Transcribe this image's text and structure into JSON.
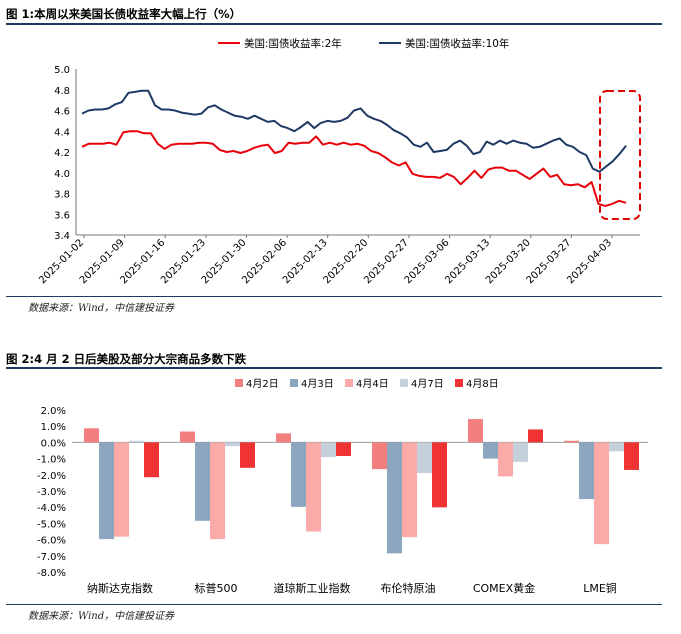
{
  "figures": [
    {
      "title": "图 1:本周以来美国长债收益率大幅上行（%）",
      "source": "数据来源：Wind，中信建投证券"
    },
    {
      "title": "图 2:4 月 2 日后美股及部分大宗商品多数下跌",
      "source": "数据来源：Wind，中信建投证券"
    }
  ],
  "colors": {
    "navy": "#1f3864",
    "red": "#e8000b",
    "box": "#e00000"
  },
  "chart_data": [
    {
      "type": "line",
      "title": "图 1:本周以来美国长债收益率大幅上行（%）",
      "xlabel": "",
      "ylabel": "",
      "ylim": [
        3.4,
        5.0
      ],
      "yticks": [
        "5.0",
        "4.8",
        "4.6",
        "4.4",
        "4.2",
        "4.0",
        "3.8",
        "3.6",
        "3.4"
      ],
      "xticks": [
        "2025-01-02",
        "2025-01-09",
        "2025-01-16",
        "2025-01-23",
        "2025-01-30",
        "2025-02-06",
        "2025-02-13",
        "2025-02-20",
        "2025-02-27",
        "2025-03-06",
        "2025-03-13",
        "2025-03-20",
        "2025-03-27",
        "2025-04-03"
      ],
      "legend_position": "top",
      "annotation": "dashed red box around final days",
      "series": [
        {
          "name": "美国:国债收益率:2年",
          "color": "#e8000b",
          "values": [
            4.25,
            4.28,
            4.28,
            4.28,
            4.29,
            4.27,
            4.39,
            4.4,
            4.4,
            4.38,
            4.38,
            4.28,
            4.23,
            4.27,
            4.28,
            4.28,
            4.28,
            4.29,
            4.29,
            4.28,
            4.22,
            4.2,
            4.21,
            4.19,
            4.21,
            4.24,
            4.26,
            4.27,
            4.19,
            4.21,
            4.29,
            4.28,
            4.29,
            4.29,
            4.35,
            4.27,
            4.29,
            4.27,
            4.29,
            4.27,
            4.28,
            4.26,
            4.21,
            4.19,
            4.15,
            4.1,
            4.07,
            4.1,
            3.99,
            3.97,
            3.96,
            3.96,
            3.95,
            3.99,
            3.96,
            3.89,
            3.95,
            4.02,
            3.95,
            4.03,
            4.05,
            4.05,
            4.02,
            4.02,
            3.98,
            3.94,
            3.99,
            4.04,
            3.96,
            3.98,
            3.89,
            3.88,
            3.89,
            3.86,
            3.91,
            3.7,
            3.68,
            3.7,
            3.73,
            3.71
          ]
        },
        {
          "name": "美国:国债收益率:10年",
          "color": "#1f3864",
          "values": [
            4.57,
            4.6,
            4.61,
            4.61,
            4.62,
            4.66,
            4.68,
            4.77,
            4.78,
            4.79,
            4.79,
            4.65,
            4.61,
            4.61,
            4.6,
            4.58,
            4.57,
            4.56,
            4.57,
            4.63,
            4.65,
            4.61,
            4.58,
            4.55,
            4.54,
            4.52,
            4.55,
            4.52,
            4.49,
            4.5,
            4.45,
            4.43,
            4.4,
            4.44,
            4.49,
            4.43,
            4.48,
            4.5,
            4.49,
            4.5,
            4.53,
            4.6,
            4.62,
            4.55,
            4.52,
            4.5,
            4.46,
            4.41,
            4.38,
            4.34,
            4.27,
            4.25,
            4.29,
            4.2,
            4.21,
            4.22,
            4.28,
            4.31,
            4.26,
            4.18,
            4.2,
            4.3,
            4.27,
            4.31,
            4.28,
            4.31,
            4.29,
            4.28,
            4.24,
            4.25,
            4.28,
            4.31,
            4.33,
            4.27,
            4.25,
            4.2,
            4.17,
            4.04,
            4.01,
            4.06,
            4.11,
            4.18,
            4.26
          ]
        }
      ]
    },
    {
      "type": "bar",
      "title": "图 2:4 月 2 日后美股及部分大宗商品多数下跌",
      "xlabel": "",
      "ylabel": "",
      "ylim": [
        -8.0,
        2.0
      ],
      "yticks": [
        "2.0%",
        "1.0%",
        "0.0%",
        "-1.0%",
        "-2.0%",
        "-3.0%",
        "-4.0%",
        "-5.0%",
        "-6.0%",
        "-7.0%",
        "-8.0%"
      ],
      "legend_position": "top",
      "categories": [
        "纳斯达克指数",
        "标普500",
        "道琼斯工业指数",
        "布伦特原油",
        "COMEX黄金",
        "LME铜"
      ],
      "series": [
        {
          "name": "4月2日",
          "color": "#f47f7f",
          "values": [
            0.87,
            0.67,
            0.56,
            -1.65,
            1.44,
            0.1
          ]
        },
        {
          "name": "4月3日",
          "color": "#8ba6be",
          "values": [
            -5.97,
            -4.84,
            -3.98,
            -6.85,
            -1.0,
            -3.5
          ]
        },
        {
          "name": "4月4日",
          "color": "#fbaaaa",
          "values": [
            -5.82,
            -5.97,
            -5.5,
            -5.85,
            -2.1,
            -6.28
          ]
        },
        {
          "name": "4月7日",
          "color": "#c4d0dc",
          "values": [
            0.1,
            -0.23,
            -0.91,
            -1.89,
            -1.2,
            -0.55
          ]
        },
        {
          "name": "4月8日",
          "color": "#f03434",
          "values": [
            -2.15,
            -1.57,
            -0.84,
            -4.01,
            0.8,
            -1.7
          ]
        }
      ]
    }
  ]
}
